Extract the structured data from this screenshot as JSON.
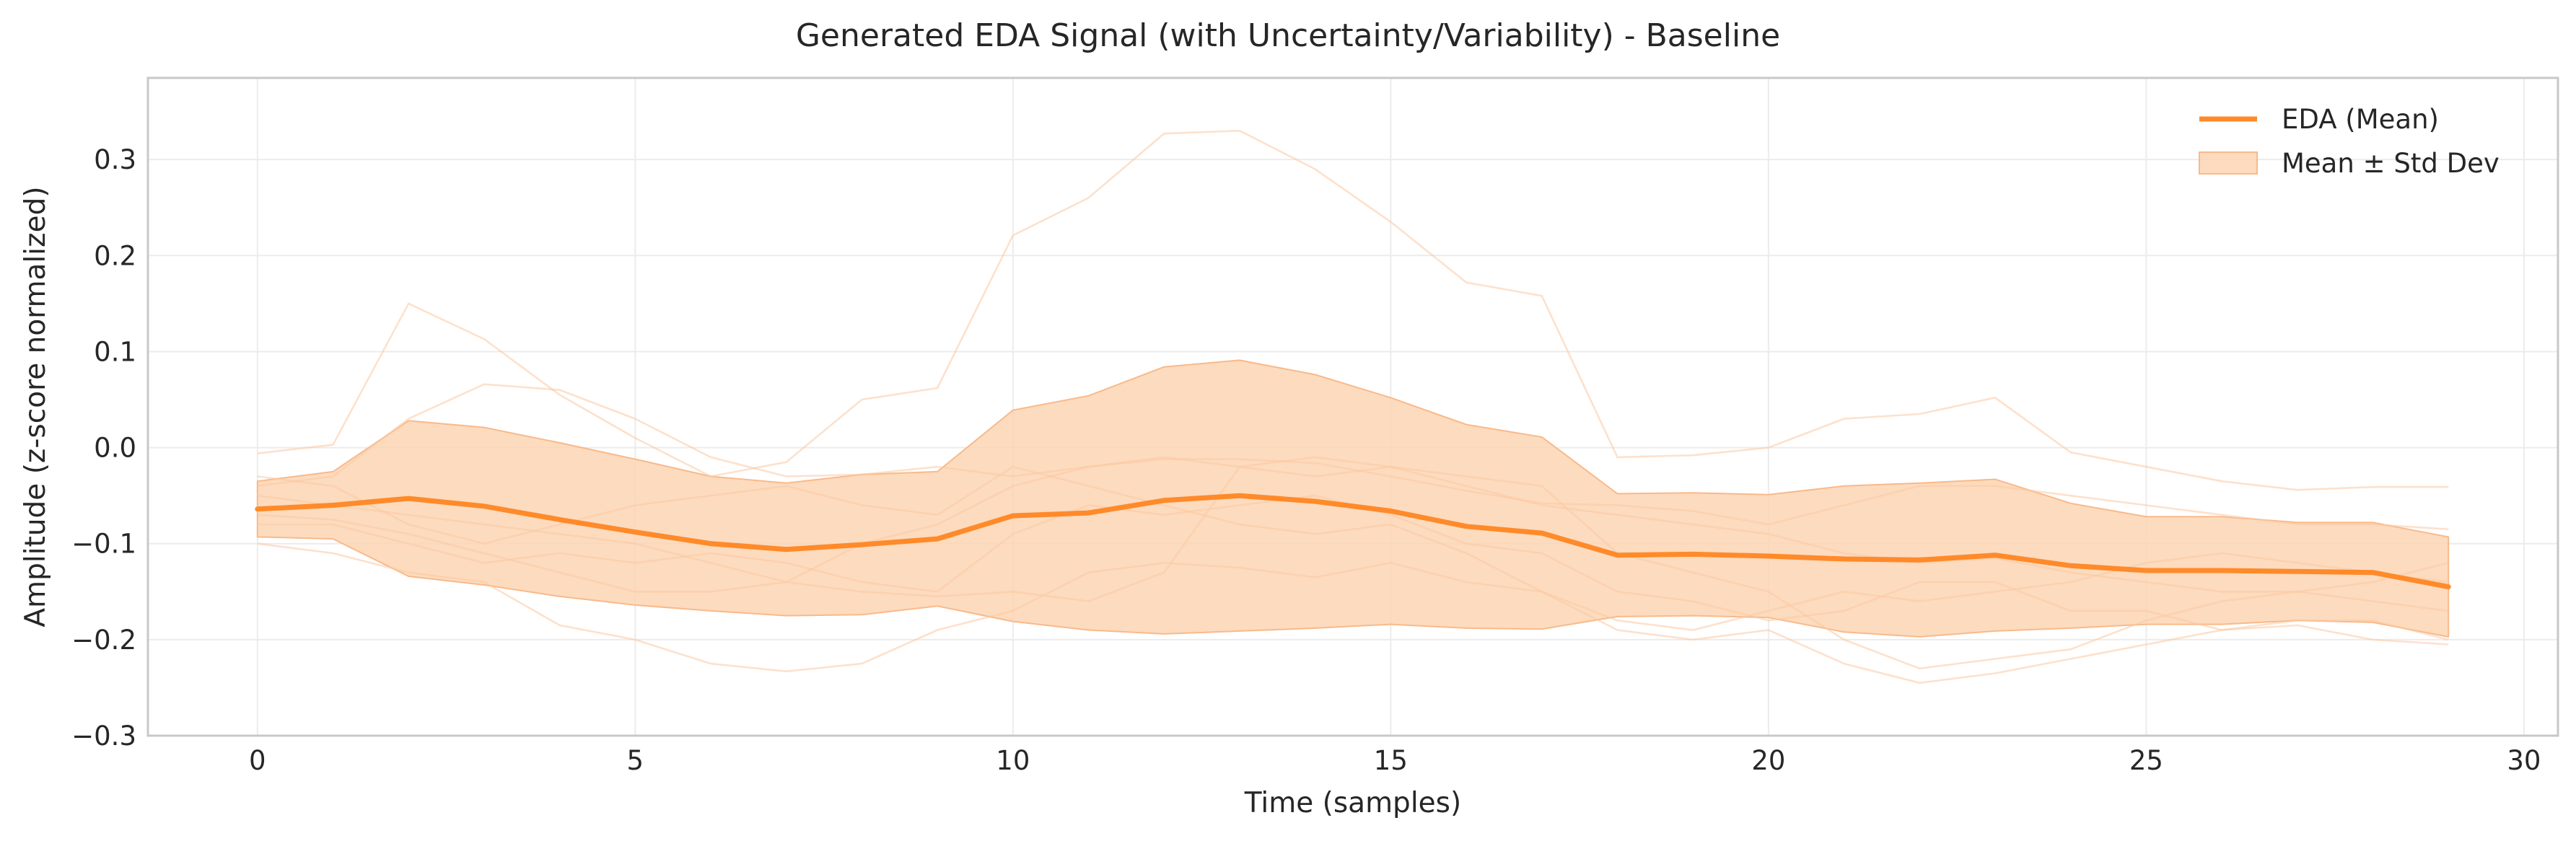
{
  "chart_data": {
    "type": "line",
    "title": "Generated EDA Signal (with Uncertainty/Variability) - Baseline",
    "xlabel": "Time (samples)",
    "ylabel": "Amplitude (z-score normalized)",
    "xlim": [
      -1.45,
      30.45
    ],
    "ylim": [
      -0.3,
      0.385
    ],
    "xticks": [
      0,
      5,
      10,
      15,
      20,
      25,
      30
    ],
    "xtick_labels": [
      "0",
      "5",
      "10",
      "15",
      "20",
      "25",
      "30"
    ],
    "yticks": [
      -0.3,
      -0.2,
      -0.1,
      0.0,
      0.1,
      0.2,
      0.3
    ],
    "ytick_labels": [
      "−0.3",
      "−0.2",
      "−0.1",
      "0.0",
      "0.1",
      "0.2",
      "0.3"
    ],
    "grid": true,
    "legend_position": "top-right",
    "colors": {
      "mean": "#ff8a2a",
      "band_fill": "#fdd5b3",
      "band_edge": "#f9b98a",
      "samples": "#fcc9a2",
      "grid": "#ececec",
      "frame": "#c8c8c8",
      "text": "#262626"
    },
    "x": [
      0,
      1,
      2,
      3,
      4,
      5,
      6,
      7,
      8,
      9,
      10,
      11,
      12,
      13,
      14,
      15,
      16,
      17,
      18,
      19,
      20,
      21,
      22,
      23,
      24,
      25,
      26,
      27,
      28,
      29
    ],
    "series": [
      {
        "name": "EDA (Mean)",
        "values": [
          -0.064,
          -0.06,
          -0.053,
          -0.061,
          -0.075,
          -0.088,
          -0.1,
          -0.106,
          -0.101,
          -0.095,
          -0.071,
          -0.068,
          -0.055,
          -0.05,
          -0.056,
          -0.066,
          -0.082,
          -0.089,
          -0.112,
          -0.111,
          -0.113,
          -0.116,
          -0.117,
          -0.112,
          -0.123,
          -0.128,
          -0.128,
          -0.129,
          -0.13,
          -0.145
        ]
      }
    ],
    "band": {
      "name": "Mean ± Std Dev",
      "upper": [
        -0.035,
        -0.025,
        0.028,
        0.021,
        0.005,
        -0.012,
        -0.03,
        -0.037,
        -0.028,
        -0.025,
        0.039,
        0.054,
        0.084,
        0.091,
        0.076,
        0.052,
        0.024,
        0.011,
        -0.048,
        -0.047,
        -0.049,
        -0.04,
        -0.037,
        -0.033,
        -0.058,
        -0.072,
        -0.072,
        -0.078,
        -0.078,
        -0.093
      ],
      "lower": [
        -0.093,
        -0.095,
        -0.134,
        -0.143,
        -0.155,
        -0.164,
        -0.17,
        -0.175,
        -0.174,
        -0.165,
        -0.181,
        -0.19,
        -0.194,
        -0.191,
        -0.188,
        -0.184,
        -0.188,
        -0.189,
        -0.176,
        -0.175,
        -0.177,
        -0.192,
        -0.197,
        -0.191,
        -0.188,
        -0.184,
        -0.184,
        -0.18,
        -0.182,
        -0.197
      ]
    },
    "samples": [
      [
        -0.006,
        0.003,
        0.15,
        0.113,
        0.055,
        0.01,
        -0.03,
        -0.015,
        0.05,
        0.062,
        0.221,
        0.26,
        0.327,
        0.33,
        0.29,
        0.235,
        0.172,
        0.158,
        -0.01,
        -0.008,
        0.0,
        0.03,
        0.035,
        0.052,
        -0.005,
        -0.02,
        -0.035,
        -0.044,
        -0.041,
        -0.041
      ],
      [
        -0.04,
        -0.03,
        0.03,
        0.066,
        0.06,
        0.03,
        -0.01,
        -0.03,
        -0.028,
        -0.02,
        -0.03,
        -0.02,
        -0.012,
        -0.012,
        -0.016,
        -0.03,
        -0.045,
        -0.058,
        -0.06,
        -0.066,
        -0.08,
        -0.06,
        -0.04,
        -0.04,
        -0.05,
        -0.06,
        -0.07,
        -0.08,
        -0.08,
        -0.085
      ],
      [
        -0.07,
        -0.075,
        -0.09,
        -0.11,
        -0.13,
        -0.15,
        -0.15,
        -0.14,
        -0.1,
        -0.08,
        -0.04,
        -0.02,
        -0.01,
        -0.02,
        -0.03,
        -0.02,
        -0.03,
        -0.04,
        -0.11,
        -0.13,
        -0.15,
        -0.2,
        -0.23,
        -0.22,
        -0.21,
        -0.18,
        -0.16,
        -0.15,
        -0.16,
        -0.17
      ],
      [
        -0.1,
        -0.11,
        -0.13,
        -0.14,
        -0.185,
        -0.2,
        -0.225,
        -0.233,
        -0.225,
        -0.19,
        -0.17,
        -0.13,
        -0.12,
        -0.125,
        -0.135,
        -0.12,
        -0.14,
        -0.15,
        -0.19,
        -0.2,
        -0.19,
        -0.225,
        -0.245,
        -0.235,
        -0.22,
        -0.205,
        -0.19,
        -0.185,
        -0.2,
        -0.205
      ],
      [
        -0.05,
        -0.06,
        -0.07,
        -0.08,
        -0.09,
        -0.1,
        -0.12,
        -0.14,
        -0.15,
        -0.155,
        -0.15,
        -0.16,
        -0.13,
        -0.02,
        -0.01,
        -0.02,
        -0.04,
        -0.06,
        -0.07,
        -0.08,
        -0.09,
        -0.11,
        -0.12,
        -0.115,
        -0.13,
        -0.14,
        -0.15,
        -0.15,
        -0.14,
        -0.12
      ],
      [
        -0.08,
        -0.08,
        -0.1,
        -0.12,
        -0.11,
        -0.12,
        -0.11,
        -0.12,
        -0.14,
        -0.15,
        -0.09,
        -0.06,
        -0.07,
        -0.06,
        -0.05,
        -0.07,
        -0.1,
        -0.11,
        -0.15,
        -0.16,
        -0.18,
        -0.17,
        -0.14,
        -0.14,
        -0.17,
        -0.17,
        -0.19,
        -0.18,
        -0.18,
        -0.2
      ],
      [
        -0.03,
        -0.04,
        -0.08,
        -0.1,
        -0.08,
        -0.06,
        -0.05,
        -0.04,
        -0.06,
        -0.07,
        -0.02,
        -0.04,
        -0.06,
        -0.08,
        -0.09,
        -0.08,
        -0.11,
        -0.15,
        -0.18,
        -0.19,
        -0.17,
        -0.15,
        -0.16,
        -0.15,
        -0.14,
        -0.12,
        -0.11,
        -0.12,
        -0.13,
        -0.14
      ]
    ]
  }
}
